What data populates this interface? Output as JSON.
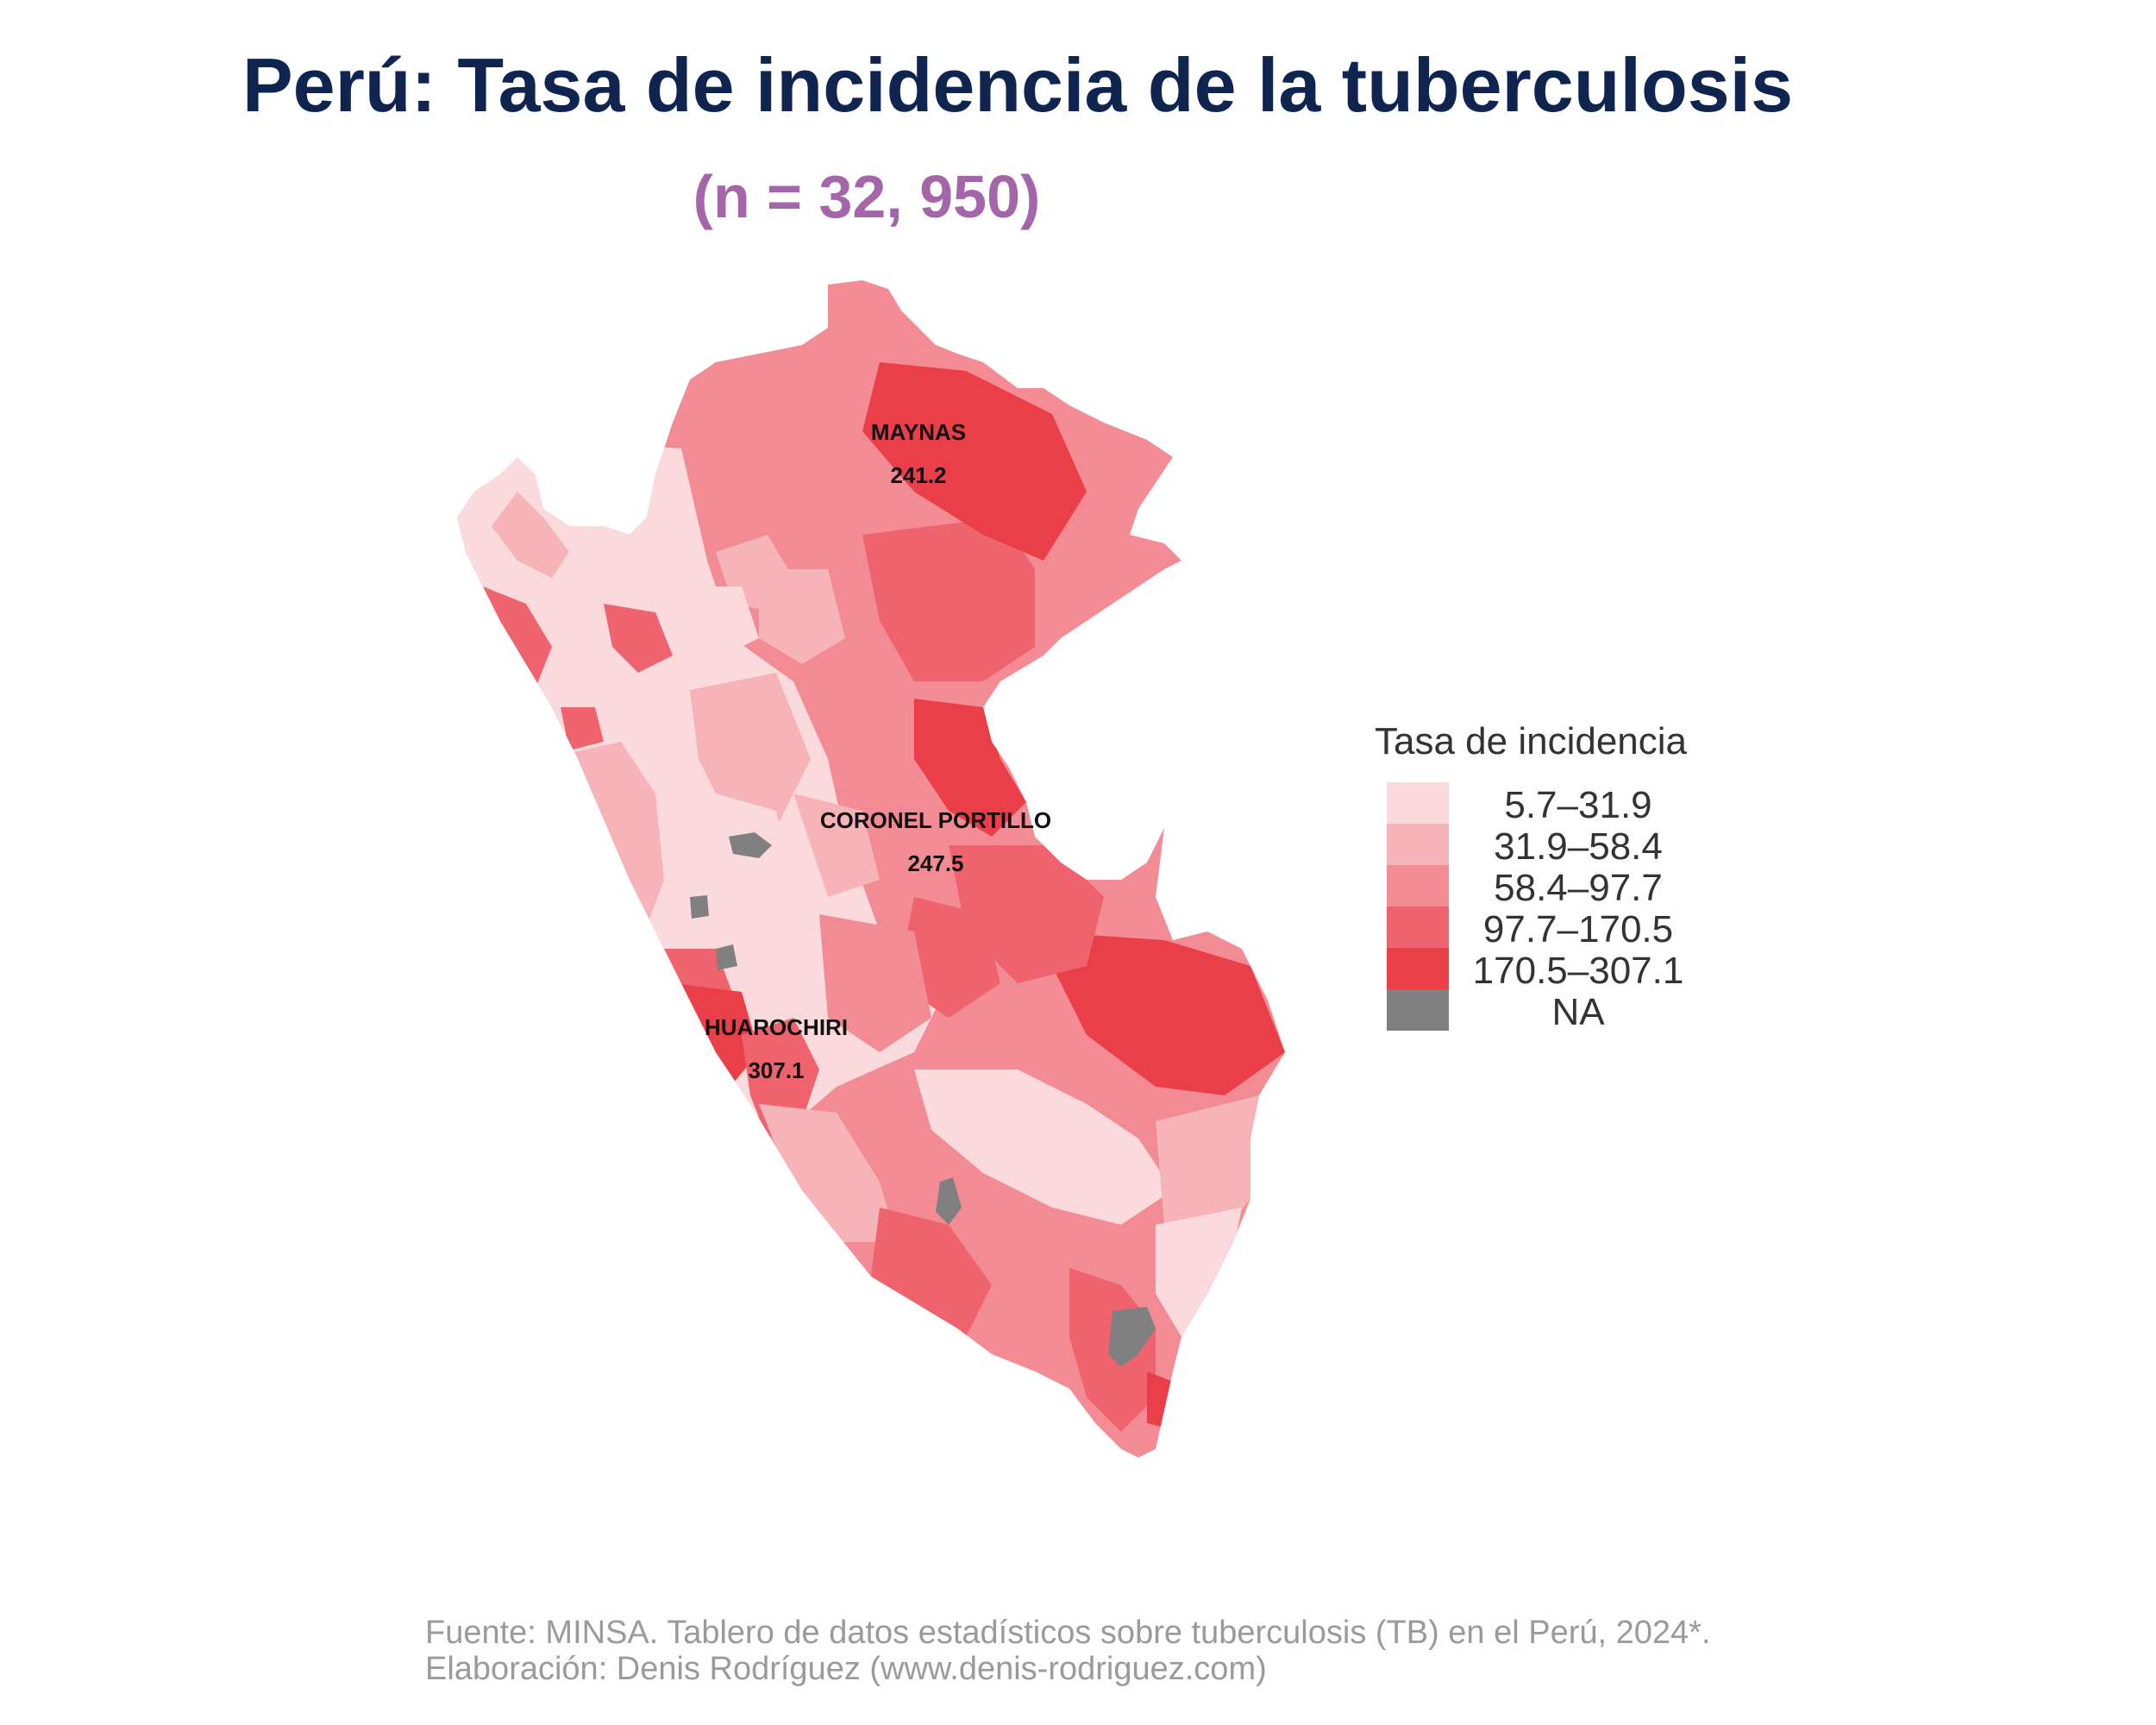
{
  "title": "Perú: Tasa de incidencia de la tuberculosis",
  "subtitle": "(n = 32, 950)",
  "legend": {
    "title": "Tasa de incidencia",
    "items": [
      {
        "label": "5.7–31.9",
        "color": "#fadadd"
      },
      {
        "label": "31.9–58.4",
        "color": "#f6b3b8"
      },
      {
        "label": "58.4–97.7",
        "color": "#f28b93"
      },
      {
        "label": "97.7–170.5",
        "color": "#ee636e"
      },
      {
        "label": "170.5–307.1",
        "color": "#ea3e49"
      },
      {
        "label": "NA",
        "color": "#808080"
      }
    ]
  },
  "annotations": [
    {
      "name": "MAYNAS",
      "value": "241.2"
    },
    {
      "name": "CORONEL PORTILLO",
      "value": "247.5"
    },
    {
      "name": "HUAROCHIRI",
      "value": "307.1"
    }
  ],
  "caption": {
    "source": "Fuente: MINSA. Tablero de datos estadísticos sobre tuberculosis (TB) en el Perú, 2024*.",
    "credit": "Elaboración: Denis Rodríguez (www.denis-rodriguez.com)"
  }
}
